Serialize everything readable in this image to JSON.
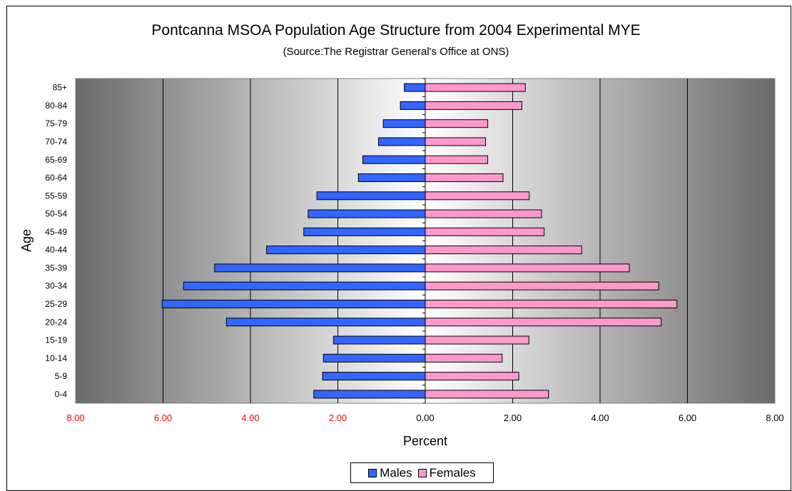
{
  "chart_data": {
    "type": "bar",
    "orientation": "horizontal",
    "title": "Pontcanna MSOA Population Age Structure from 2004 Experimental MYE",
    "subtitle": "(Source:The Registrar General's Office at ONS)",
    "xlabel": "Percent",
    "ylabel": "Age",
    "xlim": [
      -8,
      8
    ],
    "x_ticks": [
      -8,
      -6,
      -4,
      -2,
      0,
      2,
      4,
      6,
      8
    ],
    "x_tick_labels": [
      "8.00",
      "6.00",
      "4.00",
      "2.00",
      "0.00",
      "2.00",
      "4.00",
      "6.00",
      "8.00"
    ],
    "categories": [
      "0-4",
      "5-9",
      "10-14",
      "15-19",
      "20-24",
      "25-29",
      "30-34",
      "35-39",
      "40-44",
      "45-49",
      "50-54",
      "55-59",
      "60-64",
      "65-69",
      "70-74",
      "75-79",
      "80-84",
      "85+"
    ],
    "series": [
      {
        "name": "Males",
        "color": "#3366ff",
        "values": [
          2.55,
          2.35,
          2.33,
          2.1,
          4.55,
          6.02,
          5.53,
          4.82,
          3.63,
          2.78,
          2.68,
          2.48,
          1.53,
          1.43,
          1.07,
          0.96,
          0.57,
          0.48
        ]
      },
      {
        "name": "Females",
        "color": "#ff99cc",
        "values": [
          2.82,
          2.14,
          1.76,
          2.37,
          5.4,
          5.76,
          5.34,
          4.67,
          3.58,
          2.72,
          2.66,
          2.38,
          1.78,
          1.43,
          1.38,
          1.43,
          2.21,
          2.29
        ]
      }
    ],
    "grid": true,
    "legend_position": "bottom",
    "negative_tick_color": "#ff0000"
  }
}
